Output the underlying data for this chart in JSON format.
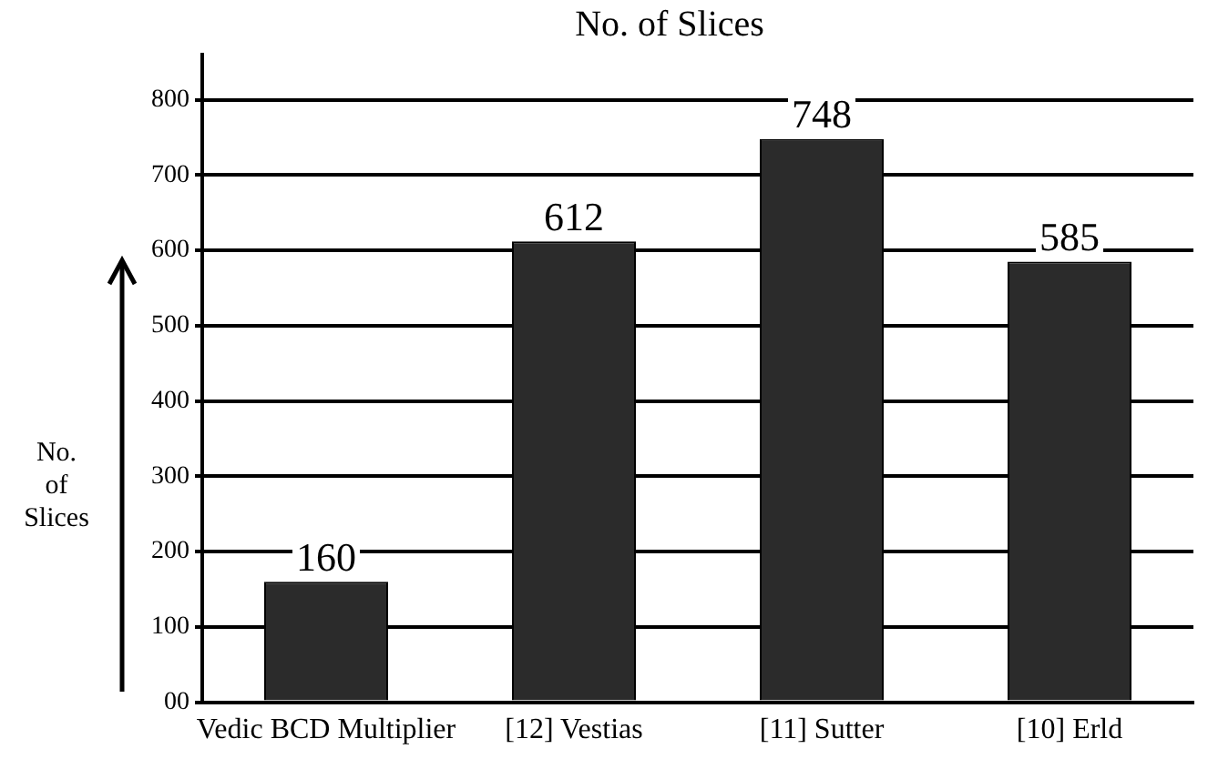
{
  "chart_data": {
    "type": "bar",
    "title": "No. of Slices",
    "ylabel": "No. of Slices",
    "categories": [
      "Vedic BCD Multiplier",
      "[12] Vestias",
      "[11] Sutter",
      "[10] Erld"
    ],
    "values": [
      160,
      612,
      748,
      585
    ],
    "color": "#2b2b2b",
    "data_labels": true,
    "ylim": [
      0,
      860
    ],
    "yticks": [
      {
        "value": 0,
        "label": "00"
      },
      100,
      200,
      300,
      400,
      500,
      600,
      700,
      800
    ],
    "grid": "y"
  }
}
